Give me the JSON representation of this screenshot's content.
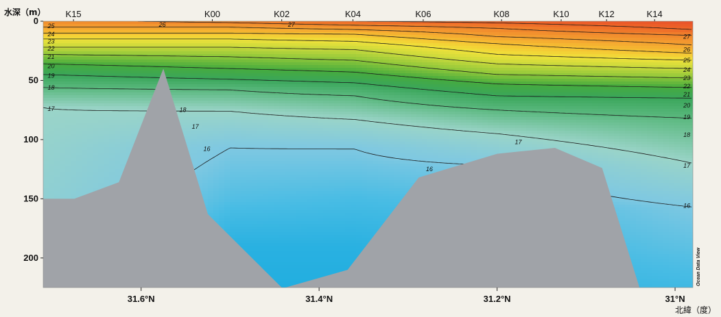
{
  "chart_data": {
    "type": "heatmap",
    "subtype": "ocean-section-contour",
    "title": "",
    "ylabel": "水深（m）",
    "xlabel": "北緯（度）",
    "x_unit": "°N latitude",
    "y_unit": "m",
    "xlim": [
      31.71,
      30.98
    ],
    "ylim": [
      0,
      225
    ],
    "x_reversed": true,
    "y_reversed": true,
    "x_ticks": [
      {
        "value": 31.6,
        "label": "31.6°N"
      },
      {
        "value": 31.4,
        "label": "31.4°N"
      },
      {
        "value": 31.2,
        "label": "31.2°N"
      },
      {
        "value": 31.0,
        "label": "31°N"
      }
    ],
    "y_ticks": [
      {
        "value": 0,
        "label": "0"
      },
      {
        "value": 50,
        "label": "50"
      },
      {
        "value": 100,
        "label": "100"
      },
      {
        "value": 150,
        "label": "150"
      },
      {
        "value": 200,
        "label": "200"
      }
    ],
    "stations": [
      {
        "name": "K15",
        "lat": 31.676
      },
      {
        "name": "K00",
        "lat": 31.52
      },
      {
        "name": "K02",
        "lat": 31.442
      },
      {
        "name": "K04",
        "lat": 31.362
      },
      {
        "name": "K06",
        "lat": 31.283
      },
      {
        "name": "K08",
        "lat": 31.195
      },
      {
        "name": "K10",
        "lat": 31.128
      },
      {
        "name": "K12",
        "lat": 31.077
      },
      {
        "name": "K14",
        "lat": 31.023
      }
    ],
    "temperature_colorscale": [
      {
        "temp": 15.0,
        "color": "#22aee0"
      },
      {
        "temp": 15.5,
        "color": "#48bce4"
      },
      {
        "temp": 16.0,
        "color": "#7ec8e2"
      },
      {
        "temp": 17.0,
        "color": "#9ad4c8"
      },
      {
        "temp": 18.0,
        "color": "#5ab87e"
      },
      {
        "temp": 19.0,
        "color": "#3aa65a"
      },
      {
        "temp": 20.0,
        "color": "#46ab3e"
      },
      {
        "temp": 21.0,
        "color": "#8cc63a"
      },
      {
        "temp": 22.0,
        "color": "#c6d83c"
      },
      {
        "temp": 23.0,
        "color": "#f0e23a"
      },
      {
        "temp": 24.0,
        "color": "#f6c032"
      },
      {
        "temp": 25.0,
        "color": "#f4a030"
      },
      {
        "temp": 26.0,
        "color": "#f0842c"
      },
      {
        "temp": 27.0,
        "color": "#ee6628"
      },
      {
        "temp": 28.0,
        "color": "#e8502a"
      }
    ],
    "temperature_profiles": [
      {
        "lat": 31.71,
        "levels": [
          [
            0,
            25.7
          ],
          [
            5,
            25
          ],
          [
            10,
            24
          ],
          [
            15,
            23
          ],
          [
            22,
            22
          ],
          [
            28,
            21
          ],
          [
            36,
            20
          ],
          [
            45,
            19
          ],
          [
            56,
            18
          ],
          [
            73,
            17
          ],
          [
            110,
            16.8
          ],
          [
            150,
            16.6
          ]
        ]
      },
      {
        "lat": 31.5,
        "levels": [
          [
            0,
            26.3
          ],
          [
            5,
            25
          ],
          [
            10,
            24
          ],
          [
            15,
            23
          ],
          [
            22,
            22
          ],
          [
            30,
            21
          ],
          [
            40,
            20
          ],
          [
            49,
            19
          ],
          [
            58,
            18
          ],
          [
            76,
            17
          ],
          [
            107,
            16
          ],
          [
            150,
            15.6
          ],
          [
            190,
            15.1
          ],
          [
            225,
            15
          ]
        ]
      },
      {
        "lat": 31.36,
        "levels": [
          [
            0,
            27.0
          ],
          [
            5,
            25.5
          ],
          [
            11,
            24
          ],
          [
            17,
            23
          ],
          [
            24,
            22
          ],
          [
            33,
            21
          ],
          [
            43,
            20
          ],
          [
            52,
            19
          ],
          [
            63,
            18
          ],
          [
            83,
            17
          ],
          [
            108,
            16
          ],
          [
            150,
            15.5
          ],
          [
            190,
            15.1
          ],
          [
            225,
            15
          ]
        ]
      },
      {
        "lat": 31.2,
        "levels": [
          [
            0,
            27.3
          ],
          [
            6,
            26
          ],
          [
            13,
            25
          ],
          [
            19,
            24
          ],
          [
            28,
            23
          ],
          [
            36,
            22
          ],
          [
            45,
            21
          ],
          [
            53,
            20
          ],
          [
            63,
            19
          ],
          [
            75,
            18
          ],
          [
            95,
            17
          ],
          [
            122,
            16
          ],
          [
            160,
            15.5
          ],
          [
            225,
            15.2
          ]
        ]
      },
      {
        "lat": 30.98,
        "levels": [
          [
            0,
            28.0
          ],
          [
            7,
            27
          ],
          [
            12,
            26
          ],
          [
            20,
            25
          ],
          [
            27,
            24
          ],
          [
            33,
            23
          ],
          [
            40,
            22
          ],
          [
            48,
            21
          ],
          [
            56,
            20
          ],
          [
            65,
            19
          ],
          [
            82,
            18
          ],
          [
            120,
            17
          ],
          [
            157,
            16
          ],
          [
            225,
            15.4
          ]
        ]
      }
    ],
    "isotherm_labels": [
      {
        "temp": 25,
        "lat": 31.705,
        "depth": 4
      },
      {
        "temp": 24,
        "lat": 31.705,
        "depth": 11
      },
      {
        "temp": 23,
        "lat": 31.705,
        "depth": 17
      },
      {
        "temp": 22,
        "lat": 31.705,
        "depth": 23
      },
      {
        "temp": 21,
        "lat": 31.705,
        "depth": 30
      },
      {
        "temp": 20,
        "lat": 31.705,
        "depth": 38
      },
      {
        "temp": 19,
        "lat": 31.705,
        "depth": 46
      },
      {
        "temp": 18,
        "lat": 31.705,
        "depth": 56
      },
      {
        "temp": 17,
        "lat": 31.705,
        "depth": 74
      },
      {
        "temp": 26,
        "lat": 31.58,
        "depth": 3
      },
      {
        "temp": 27,
        "lat": 31.435,
        "depth": 3
      },
      {
        "temp": 18,
        "lat": 31.557,
        "depth": 75
      },
      {
        "temp": 17,
        "lat": 31.543,
        "depth": 89
      },
      {
        "temp": 16,
        "lat": 31.53,
        "depth": 108
      },
      {
        "temp": 17,
        "lat": 31.18,
        "depth": 102
      },
      {
        "temp": 16,
        "lat": 31.28,
        "depth": 125
      },
      {
        "temp": 27,
        "lat": 30.983,
        "depth": 13
      },
      {
        "temp": 26,
        "lat": 30.983,
        "depth": 24
      },
      {
        "temp": 25,
        "lat": 30.983,
        "depth": 33
      },
      {
        "temp": 24,
        "lat": 30.983,
        "depth": 41
      },
      {
        "temp": 23,
        "lat": 30.983,
        "depth": 48
      },
      {
        "temp": 22,
        "lat": 30.983,
        "depth": 55
      },
      {
        "temp": 21,
        "lat": 30.983,
        "depth": 62
      },
      {
        "temp": 20,
        "lat": 30.983,
        "depth": 71
      },
      {
        "temp": 19,
        "lat": 30.983,
        "depth": 81
      },
      {
        "temp": 18,
        "lat": 30.983,
        "depth": 96
      },
      {
        "temp": 17,
        "lat": 30.983,
        "depth": 122
      },
      {
        "temp": 16,
        "lat": 30.983,
        "depth": 156
      }
    ],
    "bathymetry": [
      [
        31.71,
        150
      ],
      [
        31.675,
        150
      ],
      [
        31.625,
        136
      ],
      [
        31.575,
        40
      ],
      [
        31.525,
        163
      ],
      [
        31.442,
        225
      ],
      [
        31.438,
        225
      ],
      [
        31.368,
        210
      ],
      [
        31.288,
        132
      ],
      [
        31.2,
        112
      ],
      [
        31.135,
        107
      ],
      [
        31.082,
        124
      ],
      [
        31.04,
        225
      ]
    ],
    "watermark": "Ocean Data View",
    "colors": {
      "seafloor": "#a0a3a8",
      "contour": "#1a1a1a",
      "background": "#f3f1ea"
    }
  }
}
